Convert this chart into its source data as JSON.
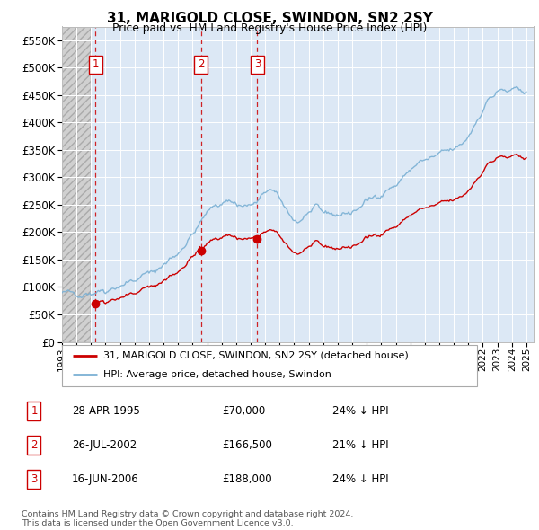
{
  "title": "31, MARIGOLD CLOSE, SWINDON, SN2 2SY",
  "subtitle": "Price paid vs. HM Land Registry's House Price Index (HPI)",
  "ylim": [
    0,
    575000
  ],
  "yticks": [
    0,
    50000,
    100000,
    150000,
    200000,
    250000,
    300000,
    350000,
    400000,
    450000,
    500000,
    550000
  ],
  "ytick_labels": [
    "£0",
    "£50K",
    "£100K",
    "£150K",
    "£200K",
    "£250K",
    "£300K",
    "£350K",
    "£400K",
    "£450K",
    "£500K",
    "£550K"
  ],
  "xlim_start": 1993.0,
  "xlim_end": 2025.5,
  "sales": [
    {
      "date": 1995.32,
      "price": 70000,
      "label": "1"
    },
    {
      "date": 2002.57,
      "price": 166500,
      "label": "2"
    },
    {
      "date": 2006.46,
      "price": 188000,
      "label": "3"
    }
  ],
  "sale_color": "#cc0000",
  "hpi_color": "#7ab0d4",
  "legend_label_house": "31, MARIGOLD CLOSE, SWINDON, SN2 2SY (detached house)",
  "legend_label_hpi": "HPI: Average price, detached house, Swindon",
  "table_rows": [
    {
      "num": "1",
      "date": "28-APR-1995",
      "price": "£70,000",
      "hpi": "24% ↓ HPI"
    },
    {
      "num": "2",
      "date": "26-JUL-2002",
      "price": "£166,500",
      "hpi": "21% ↓ HPI"
    },
    {
      "num": "3",
      "date": "16-JUN-2006",
      "price": "£188,000",
      "hpi": "24% ↓ HPI"
    }
  ],
  "footer": "Contains HM Land Registry data © Crown copyright and database right 2024.\nThis data is licensed under the Open Government Licence v3.0.",
  "plot_bg_color": "#dce8f5",
  "hatch_bg_color": "#d0d0d0"
}
